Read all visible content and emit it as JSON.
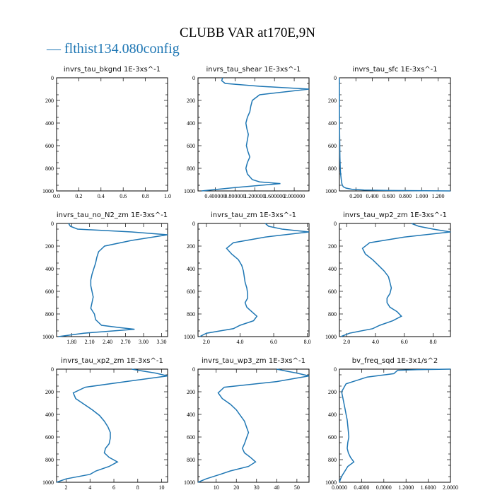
{
  "title": "CLUBB VAR at170E,9N",
  "legend": {
    "label": "— flthist134.080config",
    "color": "#1f77b4"
  },
  "chart_data": [
    {
      "type": "line",
      "title": "invrs_tau_bkgnd   1E-3xs^-1",
      "xticks": [
        "0.0",
        "0.2",
        "0.4",
        "0.6",
        "0.8",
        "1.0"
      ],
      "xlim": [
        0,
        1
      ],
      "ylim": [
        1000,
        0
      ],
      "yticks": [
        "0",
        "200",
        "400",
        "600",
        "800",
        "1000"
      ],
      "series": [
        {
          "x": [],
          "y": []
        }
      ]
    },
    {
      "type": "line",
      "title": "invrs_tau_shear   1E-3xs^-1",
      "xticks": [
        "0.400000",
        "0.800000",
        "1.200000",
        "1.600000",
        "2.000000"
      ],
      "xlim": [
        0.05,
        2.3
      ],
      "ylim": [
        1000,
        0
      ],
      "yticks": [
        "0",
        "200",
        "400",
        "600",
        "800",
        "1000"
      ],
      "series": [
        {
          "x": [
            0.55,
            0.53,
            0.6,
            1.3,
            2.3,
            1.3,
            1.15,
            1.12,
            1.1,
            1.05,
            1.02,
            1.04,
            1.07,
            1.05,
            1.03,
            1.06,
            1.1,
            1.05,
            1.02,
            1.05,
            1.15,
            1.3,
            1.72,
            0.8,
            0.12
          ],
          "y": [
            0,
            25,
            50,
            75,
            100,
            150,
            200,
            250,
            300,
            350,
            400,
            450,
            500,
            550,
            600,
            650,
            700,
            750,
            800,
            850,
            900,
            920,
            935,
            970,
            1000
          ]
        }
      ]
    },
    {
      "type": "line",
      "title": "invrs_tau_sfc   1E-3xs^-1",
      "xticks": [
        "0.200",
        "0.400",
        "0.600",
        "0.800",
        "1.000",
        "1.200"
      ],
      "xlim": [
        0,
        1.35
      ],
      "ylim": [
        1000,
        0
      ],
      "yticks": [
        "0",
        "200",
        "400",
        "600",
        "800",
        "1000"
      ],
      "series": [
        {
          "x": [
            0.0,
            0.001,
            0.003,
            0.006,
            0.01,
            0.015,
            0.022,
            0.028,
            0.035,
            0.05,
            0.08,
            0.15,
            0.3,
            0.6,
            1.35
          ],
          "y": [
            0,
            300,
            500,
            700,
            800,
            850,
            900,
            930,
            950,
            965,
            975,
            985,
            992,
            996,
            1000
          ]
        }
      ]
    },
    {
      "type": "line",
      "title": "invrs_tau_no_N2_zm   1E-3xs^-1",
      "xticks": [
        "1.80",
        "2.10",
        "2.40",
        "2.70",
        "3.00",
        "3.30"
      ],
      "xlim": [
        1.55,
        3.4
      ],
      "ylim": [
        1000,
        0
      ],
      "yticks": [
        "0",
        "200",
        "400",
        "600",
        "800",
        "1000"
      ],
      "series": [
        {
          "x": [
            1.75,
            1.78,
            1.9,
            2.8,
            3.4,
            2.8,
            2.35,
            2.25,
            2.22,
            2.2,
            2.17,
            2.14,
            2.12,
            2.12,
            2.14,
            2.16,
            2.14,
            2.12,
            2.18,
            2.2,
            2.3,
            2.6,
            2.85,
            2.0,
            1.58
          ],
          "y": [
            0,
            25,
            50,
            75,
            100,
            150,
            200,
            250,
            300,
            350,
            400,
            450,
            500,
            550,
            600,
            650,
            700,
            750,
            800,
            850,
            900,
            920,
            935,
            970,
            1000
          ]
        }
      ]
    },
    {
      "type": "line",
      "title": "invrs_tau_zm   1E-3xs^-1",
      "xticks": [
        "2.0",
        "4.0",
        "6.0",
        "8.0"
      ],
      "xlim": [
        1.5,
        8.1
      ],
      "ylim": [
        1000,
        0
      ],
      "yticks": [
        "0",
        "200",
        "400",
        "600",
        "800",
        "1000"
      ],
      "series": [
        {
          "x": [
            5.5,
            5.7,
            6.5,
            8.1,
            5.5,
            3.6,
            3.2,
            3.5,
            3.9,
            4.1,
            4.2,
            4.25,
            4.3,
            4.4,
            4.45,
            4.45,
            4.3,
            4.4,
            4.7,
            5.0,
            4.8,
            4.0,
            3.6,
            2.0,
            1.6
          ],
          "y": [
            0,
            25,
            50,
            75,
            120,
            170,
            220,
            270,
            320,
            370,
            420,
            470,
            520,
            570,
            620,
            660,
            700,
            740,
            780,
            820,
            860,
            900,
            930,
            970,
            1000
          ]
        }
      ]
    },
    {
      "type": "line",
      "title": "invrs_tau_wp2_zm   1E-3xs^-1",
      "xticks": [
        "2.0",
        "4.0",
        "6.0",
        "8.0"
      ],
      "xlim": [
        1.5,
        9.2
      ],
      "ylim": [
        1000,
        0
      ],
      "yticks": [
        "0",
        "200",
        "400",
        "600",
        "800",
        "1000"
      ],
      "series": [
        {
          "x": [
            6.5,
            7.0,
            8.0,
            9.2,
            6.0,
            3.6,
            3.1,
            3.3,
            3.8,
            4.2,
            4.6,
            4.9,
            5.0,
            5.1,
            5.0,
            4.8,
            4.8,
            5.0,
            5.5,
            5.8,
            5.2,
            4.3,
            3.8,
            2.2,
            1.6
          ],
          "y": [
            0,
            25,
            50,
            75,
            120,
            170,
            220,
            270,
            320,
            370,
            420,
            470,
            520,
            570,
            620,
            660,
            700,
            740,
            780,
            820,
            860,
            900,
            930,
            970,
            1000
          ]
        }
      ]
    },
    {
      "type": "line",
      "title": "invrs_tau_xp2_zm   1E-3xs^-1",
      "xticks": [
        "2",
        "4",
        "6",
        "8",
        "10"
      ],
      "xlim": [
        1.2,
        10.5
      ],
      "ylim": [
        1000,
        0
      ],
      "yticks": [
        "0",
        "200",
        "400",
        "600",
        "800",
        "1000"
      ],
      "series": [
        {
          "x": [
            7.5,
            8.3,
            9.5,
            10.5,
            7.0,
            3.6,
            2.6,
            2.8,
            3.5,
            4.2,
            4.8,
            5.2,
            5.5,
            5.7,
            5.7,
            5.6,
            5.3,
            5.2,
            5.6,
            6.3,
            5.6,
            4.5,
            4.0,
            2.0,
            1.2
          ],
          "y": [
            0,
            15,
            35,
            60,
            110,
            160,
            210,
            260,
            310,
            360,
            410,
            460,
            510,
            560,
            610,
            660,
            700,
            740,
            780,
            820,
            860,
            900,
            930,
            970,
            1000
          ]
        }
      ]
    },
    {
      "type": "line",
      "title": "invrs_tau_wp3_zm   1E-3xs^-1",
      "xticks": [
        "10",
        "20",
        "30",
        "40",
        "50"
      ],
      "xlim": [
        1,
        56
      ],
      "ylim": [
        1000,
        0
      ],
      "yticks": [
        "0",
        "200",
        "400",
        "600",
        "800",
        "1000"
      ],
      "series": [
        {
          "x": [
            40,
            44,
            50,
            56,
            40,
            14,
            11,
            13,
            17,
            20,
            22,
            24,
            25,
            26,
            25,
            24,
            23,
            24,
            27,
            29.5,
            26,
            17,
            12,
            5,
            1
          ],
          "y": [
            0,
            15,
            35,
            60,
            110,
            160,
            210,
            260,
            310,
            360,
            410,
            460,
            510,
            560,
            610,
            660,
            700,
            740,
            780,
            820,
            860,
            900,
            930,
            970,
            1000
          ]
        }
      ]
    },
    {
      "type": "line",
      "title": "bv_freq_sqd   1E-3x1/s^2",
      "xticks": [
        "0.0000",
        "0.4000",
        "0.8000",
        "1.2000",
        "1.6000",
        "2.0000"
      ],
      "xlim": [
        0,
        2.0
      ],
      "ylim": [
        1000,
        0
      ],
      "yticks": [
        "0",
        "200",
        "400",
        "600",
        "800",
        "1000"
      ],
      "series": [
        {
          "x": [
            2.0,
            1.4,
            1.05,
            0.98,
            0.5,
            0.12,
            0.04,
            0.06,
            0.08,
            0.1,
            0.12,
            0.14,
            0.15,
            0.16,
            0.17,
            0.15,
            0.14,
            0.16,
            0.2,
            0.26,
            0.15,
            0.1,
            0.05,
            0.02,
            0.0
          ],
          "y": [
            0,
            5,
            10,
            40,
            70,
            130,
            200,
            250,
            300,
            350,
            400,
            450,
            500,
            550,
            600,
            650,
            700,
            740,
            780,
            820,
            860,
            900,
            940,
            970,
            1000
          ]
        }
      ]
    }
  ]
}
